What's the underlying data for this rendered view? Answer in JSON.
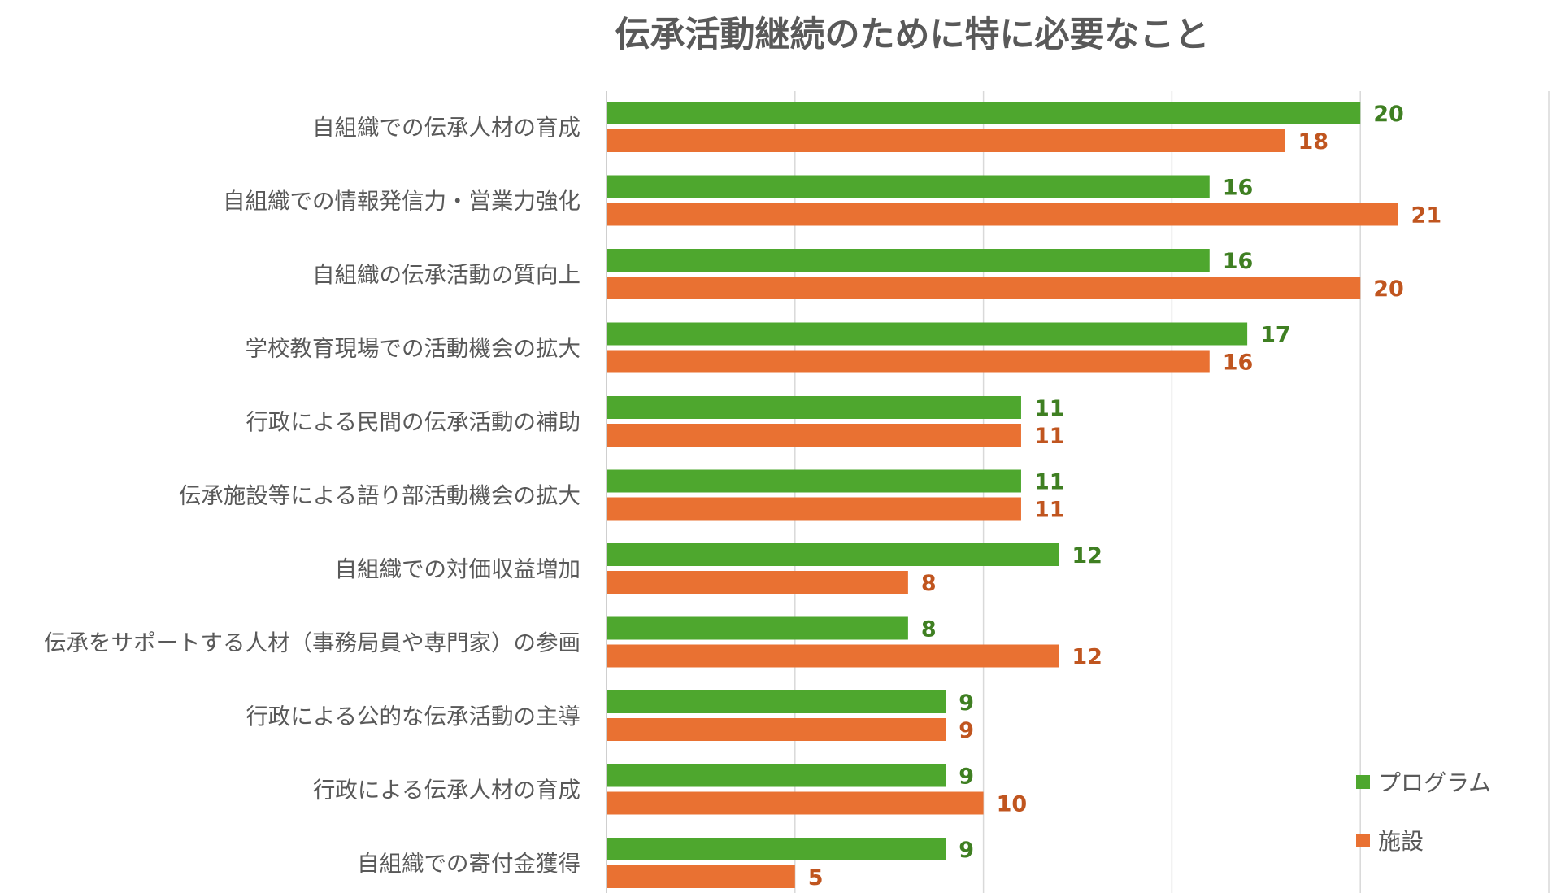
{
  "chart_data": {
    "type": "bar",
    "orientation": "horizontal",
    "title": "伝承活動継続のために特に必要なこと",
    "categories": [
      "自組織での伝承人材の育成",
      "自組織での情報発信力・営業力強化",
      "自組織の伝承活動の質向上",
      "学校教育現場での活動機会の拡大",
      "行政による民間の伝承活動の補助",
      "伝承施設等による語り部活動機会の拡大",
      "自組織での対価収益増加",
      "伝承をサポートする人材（事務局員や専門家）の参画",
      "行政による公的な伝承活動の主導",
      "行政による伝承人材の育成",
      "自組織での寄付金獲得"
    ],
    "series": [
      {
        "name": "プログラム",
        "color": "#4ea72e",
        "label_color": "#3f7f22",
        "values": [
          20,
          16,
          16,
          17,
          11,
          11,
          12,
          8,
          9,
          9,
          9
        ]
      },
      {
        "name": "施設",
        "color": "#e97132",
        "label_color": "#c0551f",
        "values": [
          18,
          21,
          20,
          16,
          11,
          11,
          8,
          12,
          9,
          10,
          5
        ]
      }
    ],
    "xlim": [
      0,
      25
    ],
    "grid": true,
    "grid_step": 5,
    "legend_position": "bottom-right"
  }
}
